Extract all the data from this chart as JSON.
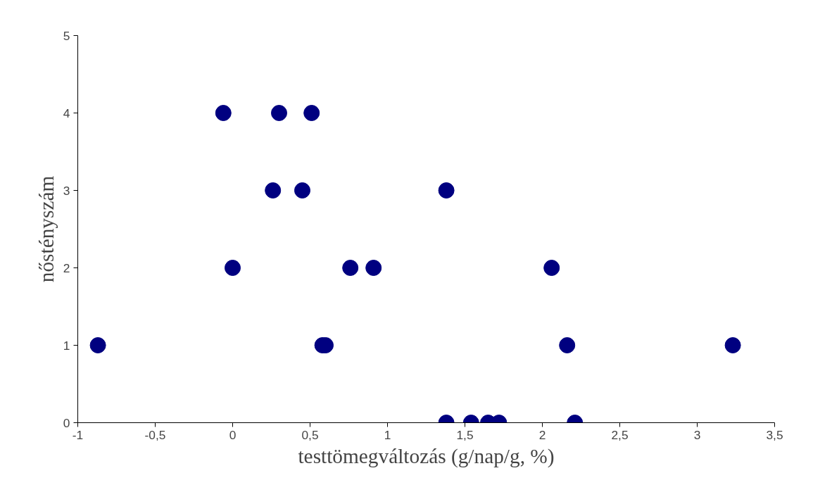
{
  "chart_data": {
    "type": "scatter",
    "xlabel": "testtömegváltozás (g/nap/g, %)",
    "ylabel": "nőstényszám",
    "x": [
      -0.87,
      -0.06,
      0.3,
      0.51,
      0.26,
      0.45,
      1.38,
      0.0,
      0.76,
      0.91,
      2.06,
      0.58,
      0.6,
      2.16,
      3.23,
      1.38,
      1.54,
      1.65,
      1.72,
      2.21
    ],
    "series": [
      {
        "color": "#000080",
        "values": [
          1,
          4,
          4,
          4,
          3,
          3,
          3,
          2,
          2,
          2,
          2,
          1,
          1,
          1,
          1,
          0,
          0,
          0,
          0,
          0
        ]
      }
    ],
    "xlim": [
      -1,
      3.5
    ],
    "xticks": [
      {
        "value": -1,
        "label": "-1"
      },
      {
        "value": -0.5,
        "label": "-0,5"
      },
      {
        "value": 0,
        "label": "0"
      },
      {
        "value": 0.5,
        "label": "0,5"
      },
      {
        "value": 1,
        "label": "1"
      },
      {
        "value": 1.5,
        "label": "1,5"
      },
      {
        "value": 2,
        "label": "2"
      },
      {
        "value": 2.5,
        "label": "2,5"
      },
      {
        "value": 3,
        "label": "3"
      },
      {
        "value": 3.5,
        "label": "3,5"
      }
    ],
    "ylim": [
      0,
      5
    ],
    "yticks": [
      0,
      1,
      2,
      3,
      4,
      5
    ],
    "grid": false,
    "marker": "circle"
  }
}
